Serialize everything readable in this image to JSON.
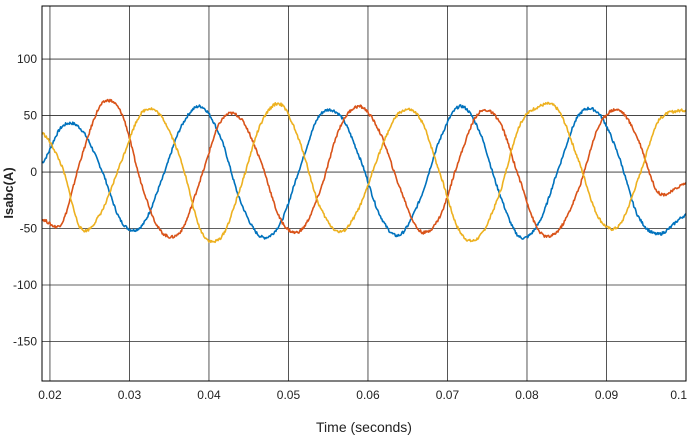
{
  "chart_data": {
    "type": "line",
    "title": "",
    "xlabel": "Time (seconds)",
    "ylabel": "Isabc(A)",
    "xlim": [
      0.019,
      0.1
    ],
    "ylim": [
      -185,
      147
    ],
    "grid": true,
    "legend": "none",
    "x_ticks": [
      0.02,
      0.03,
      0.04,
      0.05,
      0.06,
      0.07,
      0.08,
      0.09,
      0.1
    ],
    "x_tick_labels": [
      "0.02",
      "0.03",
      "0.04",
      "0.05",
      "0.06",
      "0.07",
      "0.08",
      "0.09",
      "0.1"
    ],
    "y_ticks": [
      100,
      50,
      0,
      -50,
      -100,
      -150
    ],
    "y_tick_labels": [
      "100",
      "50",
      "0",
      "-50",
      "-100",
      "-150"
    ],
    "frequency_hz": 50,
    "series": [
      {
        "color": "#0072BD",
        "x": [
          0.019,
          0.0215,
          0.0239,
          0.0265,
          0.029,
          0.0315,
          0.0339,
          0.0365,
          0.039,
          0.0415,
          0.0439,
          0.0465,
          0.049,
          0.0515,
          0.0539,
          0.0565,
          0.059,
          0.0615,
          0.0639,
          0.0665,
          0.069,
          0.0715,
          0.0739,
          0.0765,
          0.079,
          0.0815,
          0.0839,
          0.0865,
          0.089,
          0.0915,
          0.0939,
          0.0965,
          0.1
        ],
        "y": [
          8,
          40,
          38,
          2,
          -44,
          -48,
          -10,
          40,
          58,
          30,
          -25,
          -57,
          -45,
          5,
          50,
          50,
          12,
          -38,
          -56,
          -25,
          28,
          58,
          38,
          -18,
          -57,
          -45,
          2,
          50,
          52,
          15,
          -38,
          -55,
          -38
        ]
      },
      {
        "color": "#D95319",
        "x": [
          0.019,
          0.0215,
          0.0239,
          0.0265,
          0.029,
          0.0315,
          0.0339,
          0.0365,
          0.039,
          0.0415,
          0.0439,
          0.0465,
          0.049,
          0.0515,
          0.0539,
          0.0565,
          0.059,
          0.0615,
          0.0639,
          0.0665,
          0.069,
          0.0715,
          0.0739,
          0.0765,
          0.079,
          0.0815,
          0.0839,
          0.0865,
          0.089,
          0.0915,
          0.0939,
          0.0965,
          0.1
        ],
        "y": [
          -42,
          -45,
          12,
          60,
          52,
          -10,
          -52,
          -52,
          -5,
          45,
          48,
          10,
          -42,
          -52,
          -18,
          40,
          58,
          35,
          -12,
          -52,
          -40,
          12,
          52,
          45,
          -5,
          -52,
          -52,
          -15,
          40,
          55,
          30,
          -18,
          -10
        ]
      },
      {
        "color": "#EDB120",
        "x": [
          0.019,
          0.0215,
          0.0239,
          0.0265,
          0.029,
          0.0315,
          0.0339,
          0.0365,
          0.039,
          0.0415,
          0.0439,
          0.0465,
          0.049,
          0.0515,
          0.0539,
          0.0565,
          0.059,
          0.0615,
          0.0639,
          0.0665,
          0.069,
          0.0715,
          0.0739,
          0.0765,
          0.079,
          0.0815,
          0.0839,
          0.0865,
          0.089,
          0.0915,
          0.0939,
          0.0965,
          0.1
        ],
        "y": [
          35,
          5,
          -50,
          -35,
          10,
          52,
          50,
          10,
          -52,
          -58,
          -15,
          42,
          60,
          25,
          -30,
          -53,
          -30,
          18,
          52,
          48,
          0,
          -52,
          -58,
          -20,
          40,
          58,
          55,
          10,
          -40,
          -48,
          -8,
          45,
          55
        ]
      }
    ]
  }
}
